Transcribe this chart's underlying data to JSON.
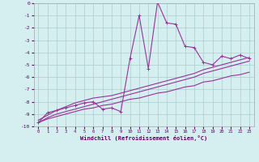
{
  "x_data": [
    0,
    1,
    2,
    3,
    4,
    5,
    6,
    7,
    8,
    9,
    10,
    11,
    12,
    13,
    14,
    15,
    16,
    17,
    18,
    19,
    20,
    21,
    22,
    23
  ],
  "y_main": [
    -9.7,
    -8.9,
    -8.7,
    -8.5,
    -8.3,
    -8.1,
    -8.0,
    -8.6,
    -8.5,
    -8.8,
    -4.5,
    -1.0,
    -5.3,
    0.1,
    -1.6,
    -1.7,
    -3.5,
    -3.6,
    -4.8,
    -5.0,
    -4.3,
    -4.5,
    -4.2,
    -4.5
  ],
  "y_line1": [
    -9.5,
    -9.1,
    -8.7,
    -8.4,
    -8.1,
    -7.9,
    -7.7,
    -7.6,
    -7.5,
    -7.3,
    -7.1,
    -6.9,
    -6.7,
    -6.5,
    -6.3,
    -6.1,
    -5.9,
    -5.7,
    -5.4,
    -5.2,
    -5.0,
    -4.8,
    -4.6,
    -4.4
  ],
  "y_line2": [
    -9.7,
    -9.3,
    -9.0,
    -8.8,
    -8.6,
    -8.4,
    -8.2,
    -8.0,
    -7.8,
    -7.6,
    -7.4,
    -7.2,
    -7.0,
    -6.8,
    -6.6,
    -6.4,
    -6.2,
    -6.0,
    -5.7,
    -5.5,
    -5.3,
    -5.1,
    -4.9,
    -4.7
  ],
  "y_line3": [
    -9.7,
    -9.4,
    -9.2,
    -9.0,
    -8.8,
    -8.6,
    -8.5,
    -8.3,
    -8.2,
    -8.0,
    -7.8,
    -7.7,
    -7.5,
    -7.3,
    -7.2,
    -7.0,
    -6.8,
    -6.7,
    -6.4,
    -6.3,
    -6.1,
    -5.9,
    -5.8,
    -5.6
  ],
  "main_color": "#993399",
  "line_color": "#993399",
  "bg_color": "#d5eef0",
  "grid_color": "#aacccc",
  "xlim": [
    -0.5,
    23.5
  ],
  "ylim": [
    -10,
    0
  ],
  "xlabel": "Windchill (Refroidissement éolien,°C)",
  "yticks": [
    0,
    -1,
    -2,
    -3,
    -4,
    -5,
    -6,
    -7,
    -8,
    -9,
    -10
  ],
  "xticks": [
    0,
    1,
    2,
    3,
    4,
    5,
    6,
    7,
    8,
    9,
    10,
    11,
    12,
    13,
    14,
    15,
    16,
    17,
    18,
    19,
    20,
    21,
    22,
    23
  ],
  "marker_size": 3.5,
  "linewidth": 0.8
}
